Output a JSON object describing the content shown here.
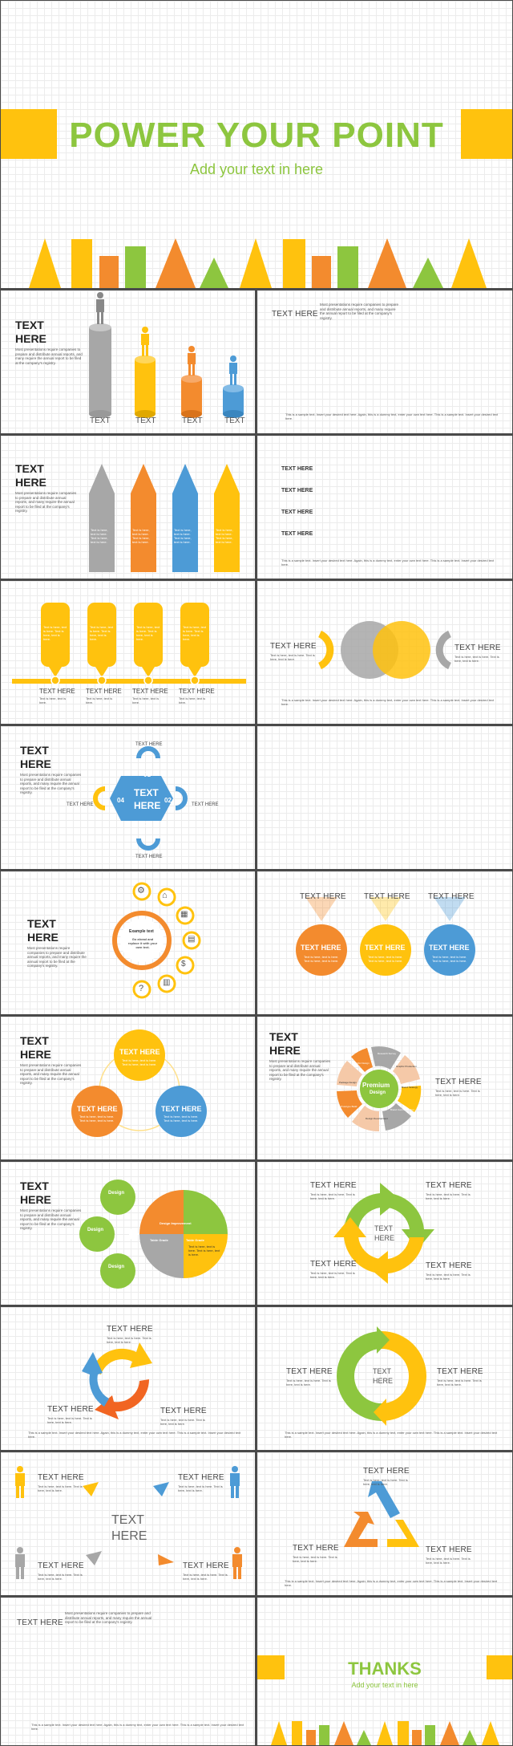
{
  "colors": {
    "green": "#8dc63f",
    "yellow": "#ffc20e",
    "orange": "#f38b2e",
    "orange2": "#f16522",
    "blue": "#4d9bd6",
    "gray": "#a7a7a7",
    "dark": "#333333"
  },
  "cover": {
    "title": "POWER YOUR POINT",
    "subtitle": "Add your text in here"
  },
  "common": {
    "text_here": "TEXT HERE",
    "text_upper": "TEXT",
    "here_upper": "HERE",
    "text_lower": "TEXT",
    "body": "Most presentations require companies to prepare and distribute annual reports, and many require the annual report to be filed at the company's registry.",
    "sample": "This is a sample text. Insert your desired text here. Again, this is a dummy text, enter your own text here. This is a sample text. Insert your desired text here.",
    "line": "Text is here, text is here.",
    "small": "Text is here, text is here. Text is here, text is here."
  },
  "s4": {
    "items": [
      "TEXT HERE",
      "TEXT HERE",
      "TEXT HERE",
      "TEXT HERE"
    ]
  },
  "s6": {
    "caps": [
      "TEXT HERE",
      "TEXT HERE",
      "TEXT HERE",
      "TEXT HERE"
    ]
  },
  "s9": {
    "center_a": "TEXT",
    "center_b": "HERE",
    "labels": [
      "TEXT HERE",
      "TEXT HERE",
      "TEXT HERE",
      "TEXT HERE"
    ],
    "nums": [
      "01",
      "02",
      "03",
      "04"
    ]
  },
  "s11": {
    "center": "Example text",
    "center_sub": "Go ahead and replace it with your own text."
  },
  "s14": {
    "center_a": "Premium",
    "center_b": "Design",
    "segments": [
      "Research Survey",
      "Graphic Production",
      "Brand Strategy",
      "Brand Communication",
      "Design Development",
      "Prototype Build",
      "Package Design",
      "Graphic Design"
    ]
  },
  "s15": {
    "bubbles": [
      "Design",
      "Design",
      "Design"
    ],
    "quad": "Table Grade",
    "quad2": "Table Grade",
    "quad3": "Design Improvement"
  },
  "thanks": {
    "title": "THANKS",
    "subtitle": "Add your text in here"
  }
}
